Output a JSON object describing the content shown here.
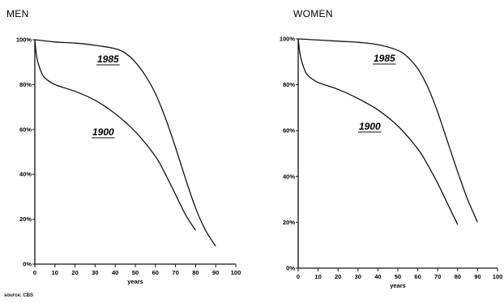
{
  "source_note": "source: CBS",
  "chart_data": [
    {
      "type": "line",
      "title": "MEN",
      "xlabel": "years",
      "ylabel": "",
      "xlim": [
        0,
        100
      ],
      "ylim": [
        0,
        100
      ],
      "x_ticks": [
        "0",
        "10",
        "20",
        "30",
        "40",
        "50",
        "60",
        "70",
        "80",
        "90",
        "100"
      ],
      "y_ticks": [
        "0%",
        "20%",
        "40%",
        "60%",
        "80%",
        "100%"
      ],
      "grid": false,
      "legend": "none",
      "series": [
        {
          "name": "1985",
          "x": [
            0,
            10,
            20,
            30,
            40,
            45,
            50,
            55,
            60,
            65,
            70,
            75,
            80,
            85,
            90
          ],
          "y": [
            100,
            99,
            98.5,
            97.5,
            96,
            94,
            90,
            84,
            76,
            65,
            52,
            38,
            25,
            15,
            8
          ]
        },
        {
          "name": "1900",
          "x": [
            0,
            1,
            3,
            5,
            10,
            20,
            30,
            40,
            50,
            60,
            65,
            70,
            75,
            80
          ],
          "y": [
            100,
            92,
            86,
            83,
            80,
            77,
            73,
            67,
            59,
            48,
            40,
            31,
            22,
            15
          ]
        }
      ]
    },
    {
      "type": "line",
      "title": "WOMEN",
      "xlabel": "years",
      "ylabel": "",
      "xlim": [
        0,
        100
      ],
      "ylim": [
        0,
        100
      ],
      "x_ticks": [
        "0",
        "10",
        "20",
        "30",
        "40",
        "50",
        "60",
        "70",
        "80",
        "90",
        "100"
      ],
      "y_ticks": [
        "0%",
        "20%",
        "40%",
        "60%",
        "80%",
        "100%"
      ],
      "grid": false,
      "legend": "none",
      "series": [
        {
          "name": "1985",
          "x": [
            0,
            10,
            20,
            30,
            40,
            50,
            55,
            60,
            65,
            70,
            75,
            80,
            85,
            90
          ],
          "y": [
            100,
            99.5,
            99,
            98.5,
            97.5,
            95,
            92,
            87,
            79,
            68,
            55,
            42,
            30,
            20
          ]
        },
        {
          "name": "1900",
          "x": [
            0,
            1,
            3,
            5,
            10,
            20,
            30,
            40,
            50,
            60,
            65,
            70,
            75,
            80
          ],
          "y": [
            100,
            93,
            87,
            84,
            81,
            78,
            74,
            69,
            62,
            52,
            45,
            37,
            28,
            19
          ]
        }
      ]
    }
  ]
}
